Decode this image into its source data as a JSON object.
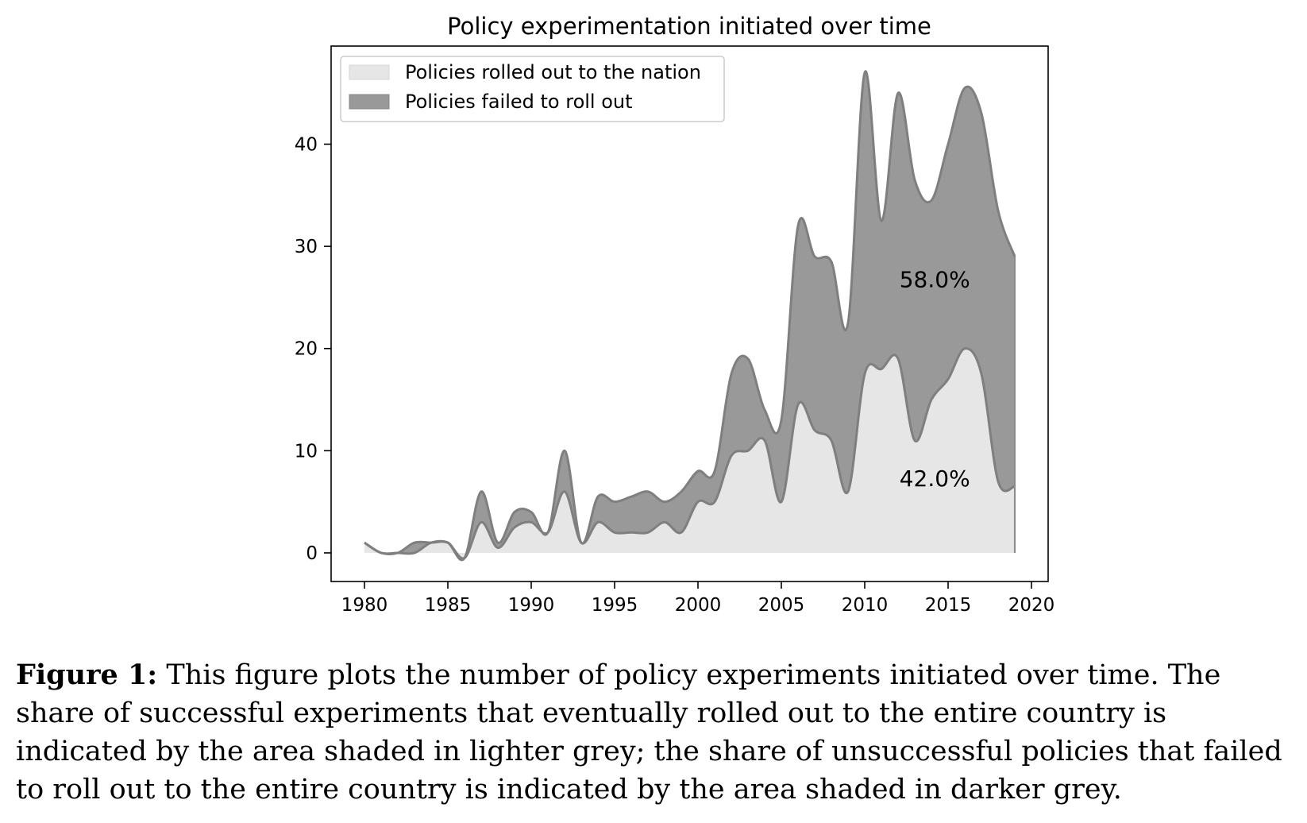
{
  "chart_data": {
    "type": "area",
    "stacked": true,
    "title": "Policy experimentation initiated over time",
    "xlabel": "",
    "ylabel": "",
    "xlim": [
      1978,
      2021
    ],
    "ylim": [
      -2.8,
      49.6
    ],
    "xticks": [
      1980,
      1985,
      1990,
      1995,
      2000,
      2005,
      2010,
      2015,
      2020
    ],
    "yticks": [
      0,
      10,
      20,
      30,
      40
    ],
    "grid": false,
    "legend": "top-left",
    "x": [
      1980,
      1981,
      1982,
      1983,
      1984,
      1985,
      1986,
      1987,
      1988,
      1989,
      1990,
      1991,
      1992,
      1993,
      1994,
      1995,
      1996,
      1997,
      1998,
      1999,
      2000,
      2001,
      2002,
      2003,
      2004,
      2005,
      2006,
      2007,
      2008,
      2009,
      2010,
      2011,
      2012,
      2013,
      2014,
      2015,
      2016,
      2017,
      2018,
      2019
    ],
    "series": [
      {
        "name": "Policies rolled out to the nation",
        "color": "#e6e6e6",
        "values": [
          1,
          0,
          0,
          0,
          1,
          1,
          -0.5,
          3,
          0.5,
          2.5,
          3,
          2,
          6,
          1,
          3,
          2,
          2,
          2,
          3,
          2,
          5,
          5,
          9.5,
          10,
          11,
          5,
          14.5,
          12,
          11,
          6,
          17.5,
          18,
          19,
          11,
          15,
          17,
          20,
          17.5,
          7,
          6.5
        ]
      },
      {
        "name": "Policies failed to roll out",
        "color": "#999999",
        "values": [
          0,
          0,
          0,
          1,
          0,
          0,
          0,
          3,
          0.5,
          1.5,
          1,
          0,
          4,
          0,
          2.5,
          3,
          3.5,
          4,
          2,
          4,
          3,
          3,
          8,
          9,
          3,
          8,
          17.5,
          17,
          17.5,
          16.5,
          29.5,
          14.5,
          26,
          25.5,
          19.5,
          23,
          25.5,
          25.5,
          26.5,
          22.5
        ]
      }
    ],
    "annotations": [
      {
        "text": "58.0%",
        "x": 2014.2,
        "y": 26.8
      },
      {
        "text": "42.0%",
        "x": 2014.2,
        "y": 7.3
      }
    ]
  },
  "caption": {
    "label": "Figure 1:",
    "text": " This figure plots the number of policy experiments initiated over time. The share of successful experiments that eventually rolled out to the entire country is indicated by the area shaded in lighter grey; the share of unsuccessful policies that failed to roll out to the entire country is indicated by the area shaded in darker grey."
  }
}
